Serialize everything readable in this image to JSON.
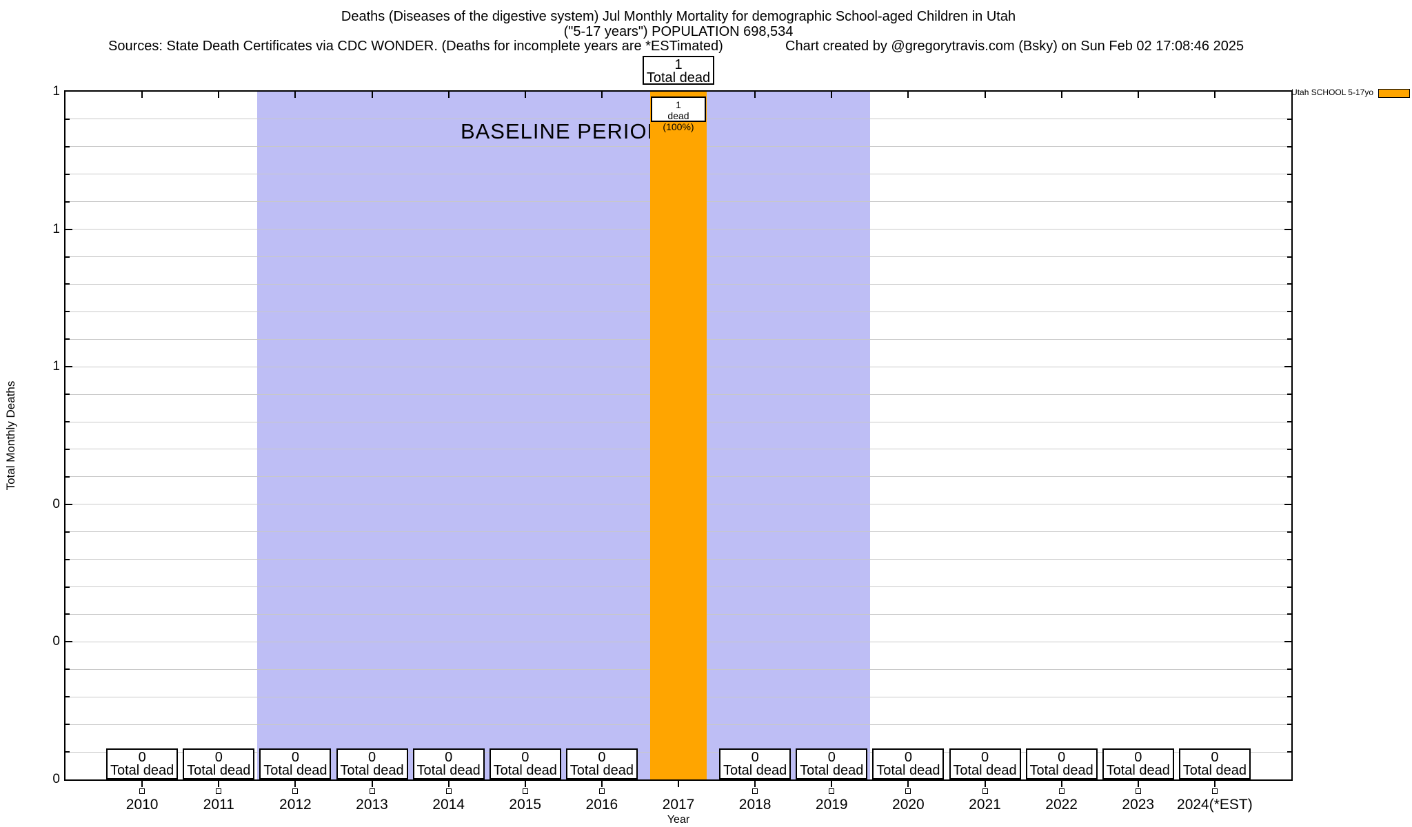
{
  "header": {
    "title_line1": "Deaths (Diseases of the digestive system) Jul Monthly Mortality for demographic School-aged Children in Utah",
    "title_line2": "(\"5-17 years\") POPULATION 698,534",
    "sources": "Sources: State Death Certificates via CDC WONDER. (Deaths for incomplete years are *ESTimated)",
    "credit": "Chart created by @gregorytravis.com (Bsky) on Sun Feb 02 17:08:46 2025"
  },
  "legend": {
    "label": "Utah SCHOOL 5-17yo",
    "swatch_color": "#FFA500"
  },
  "chart_data": {
    "type": "bar",
    "title": "Deaths (Diseases of the digestive system) Jul Monthly Mortality for demographic School-aged Children in Utah (\"5-17 years\") POPULATION 698,534",
    "xlabel": "Year",
    "ylabel": "Total Monthly Deaths",
    "ylim": [
      0,
      1
    ],
    "grid": true,
    "gridline_color": "#c8c8c8",
    "legend_position": "top-right-outside",
    "y_major_tick_labels_top_to_bottom": [
      "1",
      "1",
      "1",
      "0",
      "0",
      "0"
    ],
    "y_minor_divisions": 25,
    "categories": [
      "2010",
      "2011",
      "2012",
      "2013",
      "2014",
      "2015",
      "2016",
      "2017",
      "2018",
      "2019",
      "2020",
      "2021",
      "2022",
      "2023",
      "2024(*EST)"
    ],
    "series": [
      {
        "name": "Utah SCHOOL 5-17yo",
        "color": "#FFA500",
        "values": [
          0,
          0,
          0,
          0,
          0,
          0,
          0,
          1,
          0,
          0,
          0,
          0,
          0,
          0,
          0
        ]
      }
    ],
    "value_boxes": {
      "zero_line1": "0",
      "zero_line2": "Total dead",
      "peak_line1": "1",
      "peak_line2": "Total dead",
      "peak_inner_line1": "1",
      "peak_inner_line2": "dead (100%)"
    },
    "baseline_region": {
      "x_start_year": 2011.5,
      "x_end_year": 2019.5,
      "label": "BASELINE PERIOD",
      "color": "#bebef5"
    }
  }
}
